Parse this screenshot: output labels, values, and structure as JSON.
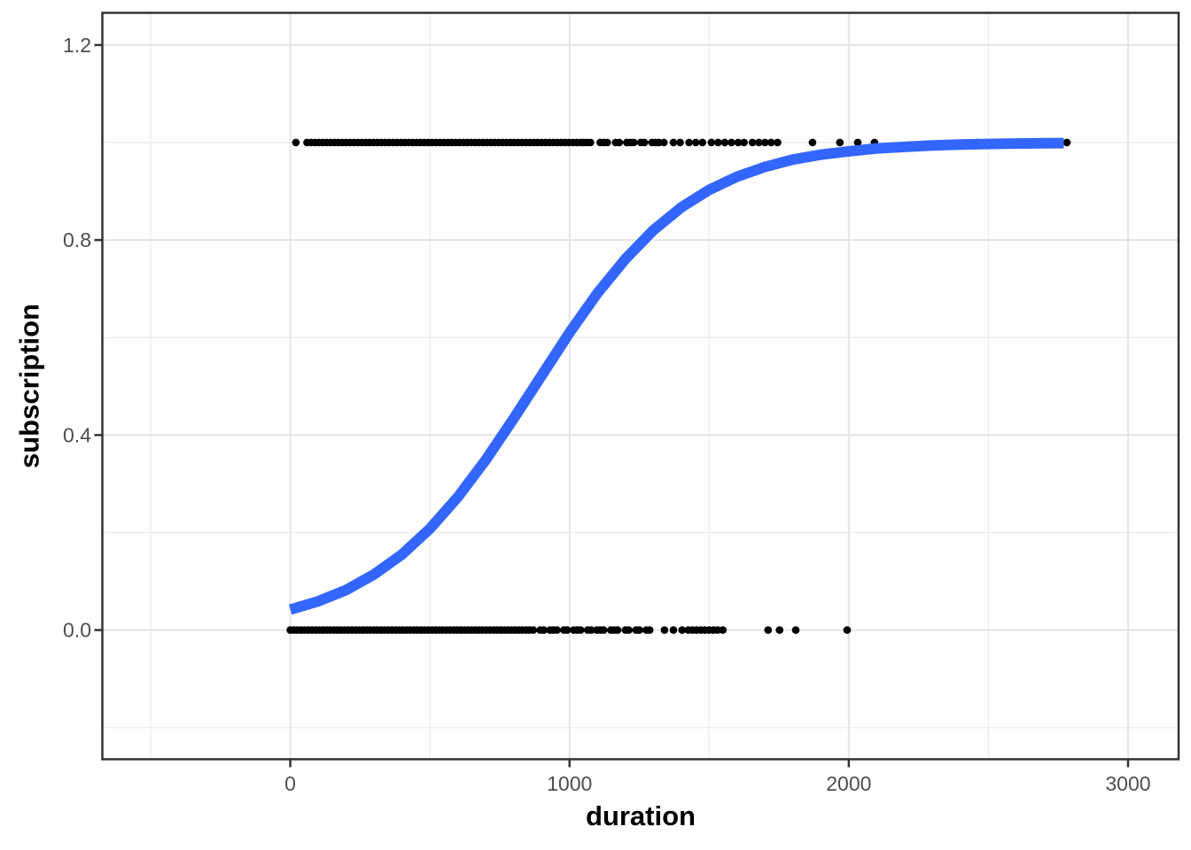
{
  "figure": {
    "x_axis_title": "duration",
    "y_axis_title": "subscription"
  },
  "colors": {
    "background": "#FFFFFF",
    "panel_background": "#FFFFFF",
    "panel_border": "#333333",
    "grid_major": "#E4E4E4",
    "grid_minor": "#EFEFEF",
    "tick_mark": "#333333",
    "tick_label": "#4D4D4D",
    "axis_title": "#000000",
    "points": "#000000",
    "curve": "#3366FF"
  },
  "chart_data": {
    "type": "scatter",
    "title": "",
    "xlabel": "duration",
    "ylabel": "subscription",
    "grid": true,
    "legend": "none",
    "xlim": [
      -673,
      3181
    ],
    "ylim": [
      -0.265,
      1.266
    ],
    "x_ticks": {
      "values": [
        0,
        1000,
        2000,
        3000
      ],
      "labels": [
        "0",
        "1000",
        "2000",
        "3000"
      ]
    },
    "x_minor_ticks": [
      -500,
      500,
      1500,
      2500
    ],
    "y_ticks": {
      "values": [
        0.0,
        0.4,
        0.8,
        1.2
      ],
      "labels": [
        "0.0",
        "0.4",
        "0.8",
        "1.2"
      ]
    },
    "y_minor_ticks": [
      -0.2,
      0.2,
      0.6,
      1.0
    ],
    "series": [
      {
        "name": "observations_subscription_1",
        "kind": "points",
        "y": 1,
        "x": [
          20,
          60,
          74,
          88,
          102,
          116,
          130,
          144,
          158,
          172,
          186,
          200,
          214,
          228,
          242,
          256,
          270,
          284,
          298,
          312,
          326,
          340,
          354,
          368,
          382,
          396,
          410,
          424,
          438,
          452,
          466,
          480,
          494,
          508,
          522,
          536,
          550,
          564,
          578,
          592,
          606,
          620,
          634,
          648,
          662,
          676,
          690,
          704,
          718,
          732,
          746,
          760,
          774,
          788,
          802,
          816,
          830,
          844,
          858,
          872,
          886,
          900,
          914,
          928,
          942,
          956,
          970,
          984,
          998,
          1012,
          1026,
          1040,
          1050,
          1062,
          1075,
          1110,
          1122,
          1135,
          1165,
          1178,
          1205,
          1218,
          1230,
          1255,
          1268,
          1295,
          1308,
          1320,
          1338,
          1372,
          1396,
          1428,
          1452,
          1476,
          1508,
          1532,
          1556,
          1580,
          1604,
          1625,
          1655,
          1678,
          1700,
          1722,
          1745,
          1870,
          1968,
          2032,
          2092,
          2460,
          2781
        ]
      },
      {
        "name": "observations_subscription_0",
        "kind": "points",
        "y": 0,
        "x": [
          0,
          13,
          26,
          39,
          52,
          65,
          78,
          91,
          104,
          117,
          130,
          143,
          156,
          169,
          182,
          195,
          208,
          221,
          234,
          247,
          260,
          273,
          286,
          299,
          312,
          325,
          338,
          351,
          364,
          377,
          390,
          403,
          416,
          429,
          442,
          455,
          468,
          481,
          494,
          507,
          520,
          533,
          546,
          559,
          572,
          585,
          598,
          611,
          624,
          637,
          650,
          663,
          676,
          689,
          702,
          715,
          728,
          741,
          754,
          767,
          780,
          793,
          806,
          819,
          832,
          845,
          857,
          870,
          895,
          908,
          930,
          942,
          955,
          980,
          992,
          1015,
          1028,
          1040,
          1065,
          1078,
          1098,
          1110,
          1122,
          1148,
          1160,
          1172,
          1200,
          1212,
          1238,
          1250,
          1275,
          1287,
          1340,
          1372,
          1403,
          1425,
          1440,
          1455,
          1470,
          1485,
          1500,
          1515,
          1530,
          1549,
          1711,
          1752,
          1810,
          1994
        ]
      },
      {
        "name": "logistic_fit",
        "kind": "line",
        "points": [
          [
            0,
            0.042
          ],
          [
            100,
            0.059
          ],
          [
            200,
            0.082
          ],
          [
            300,
            0.114
          ],
          [
            400,
            0.155
          ],
          [
            500,
            0.208
          ],
          [
            600,
            0.273
          ],
          [
            700,
            0.349
          ],
          [
            800,
            0.434
          ],
          [
            900,
            0.522
          ],
          [
            1000,
            0.61
          ],
          [
            1100,
            0.691
          ],
          [
            1200,
            0.761
          ],
          [
            1300,
            0.82
          ],
          [
            1400,
            0.867
          ],
          [
            1500,
            0.903
          ],
          [
            1600,
            0.93
          ],
          [
            1700,
            0.95
          ],
          [
            1800,
            0.965
          ],
          [
            1900,
            0.975
          ],
          [
            2000,
            0.982
          ],
          [
            2100,
            0.988
          ],
          [
            2200,
            0.991
          ],
          [
            2300,
            0.994
          ],
          [
            2400,
            0.996
          ],
          [
            2500,
            0.997
          ],
          [
            2600,
            0.998
          ],
          [
            2700,
            0.9985
          ],
          [
            2770,
            0.9989
          ]
        ]
      }
    ]
  }
}
